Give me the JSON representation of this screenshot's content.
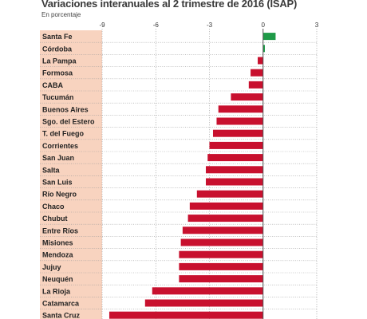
{
  "chart_data": {
    "type": "bar",
    "orientation": "horizontal",
    "title": "Variaciones interanuales al 2 trimestre de 2016 (ISAP)",
    "subtitle": "En porcentaje",
    "categories": [
      "Santa Fe",
      "Córdoba",
      "La Pampa",
      "Formosa",
      "CABA",
      "Tucumán",
      "Buenos Aires",
      "Sgo. del Estero",
      "T. del Fuego",
      "Corrientes",
      "San Juan",
      "Salta",
      "San Luis",
      "Río Negro",
      "Chaco",
      "Chubut",
      "Entre Ríos",
      "Misiones",
      "Mendoza",
      "Jujuy",
      "Neuquén",
      "La Rioja",
      "Catamarca",
      "Santa Cruz"
    ],
    "values": [
      0.7,
      0.1,
      -0.3,
      -0.7,
      -0.8,
      -1.8,
      -2.5,
      -2.6,
      -2.8,
      -3.0,
      -3.1,
      -3.2,
      -3.2,
      -3.7,
      -4.1,
      -4.2,
      -4.5,
      -4.6,
      -4.7,
      -4.7,
      -4.7,
      -6.2,
      -6.6,
      -8.6
    ],
    "xlim": [
      -9,
      3
    ],
    "xticks": [
      -9,
      -6,
      -3,
      0,
      3
    ],
    "grid": true,
    "colors": {
      "negative": "#c8102e",
      "positive": "#1f9a48",
      "label_band": "#f8d3bf",
      "zero_line": "#555555",
      "grid": "#9a9a9a"
    }
  }
}
